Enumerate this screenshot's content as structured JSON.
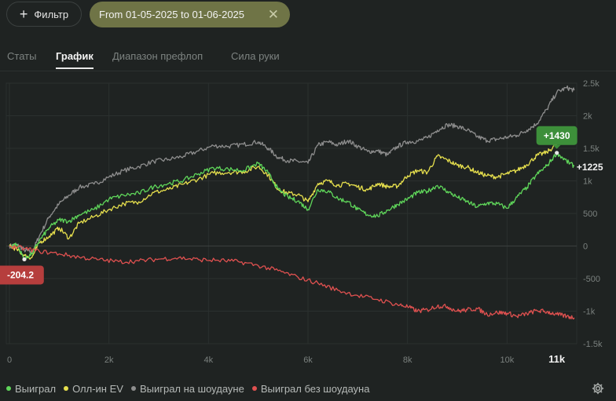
{
  "toolbar": {
    "filter_label": "Фильтр",
    "date_range": "From 01-05-2025 to 01-06-2025"
  },
  "tabs": [
    {
      "label": "Статы",
      "active": false
    },
    {
      "label": "График",
      "active": true
    },
    {
      "label": "Диапазон префлоп",
      "active": false
    },
    {
      "label": "Сила руки",
      "active": false
    }
  ],
  "chart_data": {
    "type": "line",
    "x_ticks": [
      "0",
      "2k",
      "4k",
      "6k",
      "8k",
      "10k",
      "11k"
    ],
    "y_ticks": [
      "2.5k",
      "2k",
      "1.5k",
      "1k",
      "500",
      "0",
      "-500",
      "-1k",
      "-1.5k"
    ],
    "xlim": [
      0,
      11400
    ],
    "ylim": [
      -1500,
      2500
    ],
    "grid": true,
    "legend_position": "bottom-left",
    "series": [
      {
        "name": "Выиграл на шоудауне",
        "color": "#8e8e8e",
        "x": [
          0,
          150,
          300,
          450,
          600,
          800,
          1000,
          1200,
          1400,
          1700,
          2000,
          2300,
          2600,
          2900,
          3200,
          3500,
          3800,
          4100,
          4400,
          4700,
          5000,
          5200,
          5400,
          5600,
          5800,
          6000,
          6200,
          6400,
          6600,
          6800,
          7000,
          7200,
          7400,
          7600,
          7800,
          8000,
          8200,
          8400,
          8600,
          8800,
          9000,
          9200,
          9400,
          9600,
          9800,
          10000,
          10200,
          10400,
          10600,
          10800,
          11000,
          11200,
          11350
        ],
        "y": [
          0,
          20,
          -60,
          -100,
          150,
          450,
          650,
          780,
          900,
          950,
          1060,
          1160,
          1220,
          1300,
          1330,
          1380,
          1460,
          1540,
          1530,
          1560,
          1600,
          1500,
          1360,
          1310,
          1300,
          1270,
          1550,
          1600,
          1550,
          1620,
          1530,
          1450,
          1460,
          1400,
          1530,
          1600,
          1610,
          1660,
          1780,
          1860,
          1840,
          1780,
          1680,
          1620,
          1640,
          1670,
          1700,
          1780,
          1880,
          2100,
          2360,
          2430,
          2390
        ]
      },
      {
        "name": "Олл-ин EV",
        "color": "#e6df4d",
        "x": [
          0,
          150,
          300,
          450,
          600,
          800,
          1000,
          1200,
          1400,
          1700,
          2000,
          2300,
          2600,
          2900,
          3200,
          3500,
          3800,
          4100,
          4400,
          4700,
          5000,
          5200,
          5400,
          5600,
          5800,
          6000,
          6200,
          6400,
          6600,
          6800,
          7000,
          7200,
          7400,
          7600,
          7800,
          8000,
          8200,
          8400,
          8600,
          8800,
          9000,
          9200,
          9400,
          9600,
          9800,
          10000,
          10200,
          10400,
          10600,
          10800,
          11000,
          11200,
          11350
        ],
        "y": [
          0,
          -50,
          -150,
          -180,
          50,
          150,
          280,
          120,
          350,
          450,
          560,
          650,
          680,
          820,
          870,
          950,
          1030,
          1120,
          1130,
          1140,
          1220,
          1090,
          870,
          810,
          790,
          680,
          960,
          1000,
          930,
          960,
          910,
          860,
          960,
          910,
          920,
          1080,
          1160,
          1130,
          1380,
          1320,
          1240,
          1210,
          1130,
          1080,
          1060,
          1110,
          1160,
          1250,
          1390,
          1440,
          1560,
          1620,
          1630
        ]
      },
      {
        "name": "Выиграл",
        "color": "#5fd65a",
        "x": [
          0,
          150,
          300,
          450,
          600,
          800,
          1000,
          1200,
          1400,
          1700,
          2000,
          2300,
          2600,
          2900,
          3200,
          3500,
          3800,
          4100,
          4400,
          4700,
          5000,
          5200,
          5400,
          5600,
          5800,
          6000,
          6200,
          6400,
          6600,
          6800,
          7000,
          7200,
          7400,
          7600,
          7800,
          8000,
          8200,
          8400,
          8600,
          8800,
          9000,
          9200,
          9400,
          9600,
          9800,
          10000,
          10200,
          10400,
          10600,
          10800,
          11000,
          11200,
          11350
        ],
        "y": [
          0,
          20,
          -204.2,
          -120,
          80,
          280,
          400,
          380,
          480,
          560,
          720,
          780,
          810,
          910,
          960,
          1010,
          1110,
          1200,
          1180,
          1160,
          1270,
          1120,
          870,
          750,
          690,
          560,
          870,
          840,
          730,
          680,
          560,
          480,
          460,
          550,
          640,
          720,
          820,
          840,
          930,
          840,
          750,
          680,
          600,
          660,
          650,
          580,
          750,
          900,
          1100,
          1230,
          1430,
          1300,
          1225
        ]
      },
      {
        "name": "Выиграл без шоудауна",
        "color": "#e05150",
        "x": [
          0,
          300,
          600,
          1000,
          1400,
          1800,
          2200,
          2600,
          3000,
          3400,
          3800,
          4200,
          4600,
          5000,
          5400,
          5800,
          6200,
          6600,
          7000,
          7400,
          7800,
          8000,
          8200,
          8400,
          8600,
          8800,
          9000,
          9200,
          9400,
          9600,
          9800,
          10000,
          10200,
          10400,
          10600,
          10800,
          11000,
          11200,
          11350
        ],
        "y": [
          0,
          -40,
          -80,
          -120,
          -170,
          -210,
          -240,
          -230,
          -200,
          -180,
          -210,
          -220,
          -240,
          -300,
          -380,
          -480,
          -570,
          -680,
          -760,
          -820,
          -900,
          -930,
          -1000,
          -980,
          -920,
          -930,
          -1000,
          -980,
          -960,
          -1050,
          -1020,
          -1030,
          -1080,
          -1040,
          -990,
          -1010,
          -1050,
          -1080,
          -1100
        ]
      }
    ],
    "annotations": [
      {
        "text": "+1430",
        "x": 11000,
        "y": 1430,
        "color": "#3d8f3a"
      },
      {
        "text": "+1225",
        "x": 11350,
        "y": 1225,
        "color": "none"
      },
      {
        "text": "-204.2",
        "x": 300,
        "y": -204.2,
        "color": "#b63e3d"
      }
    ]
  },
  "legend": [
    {
      "label": "Выиграл",
      "color": "#5fd65a"
    },
    {
      "label": "Олл-ин EV",
      "color": "#e6df4d"
    },
    {
      "label": "Выиграл на шоудауне",
      "color": "#8e8e8e"
    },
    {
      "label": "Выиграл без шоудауна",
      "color": "#e05150"
    }
  ]
}
